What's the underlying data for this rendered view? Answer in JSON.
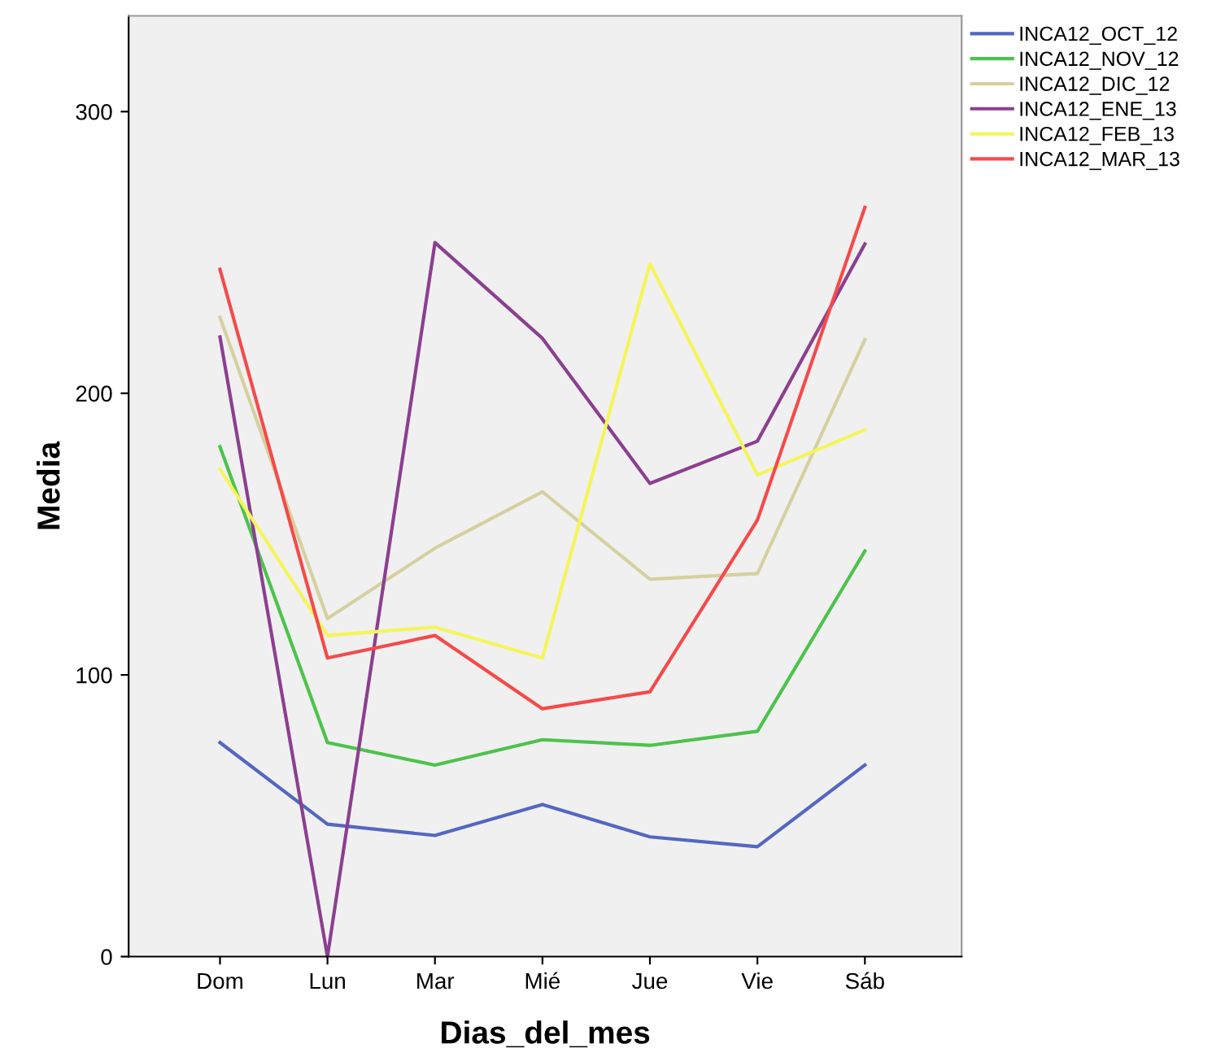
{
  "chart_data": {
    "type": "line",
    "xlabel": "Dias_del_mes",
    "ylabel": "Media",
    "categories": [
      "Dom",
      "Lun",
      "Mar",
      "Mié",
      "Jue",
      "Vie",
      "Sáb"
    ],
    "series": [
      {
        "name": "INCA12_OCT_12",
        "color": "#5467c0",
        "values": [
          76,
          47,
          43,
          54,
          42.5,
          39,
          68
        ]
      },
      {
        "name": "INCA12_NOV_12",
        "color": "#4cc34c",
        "values": [
          181,
          76,
          68,
          77,
          75,
          80,
          144
        ]
      },
      {
        "name": "INCA12_DIC_12",
        "color": "#d6d0a0",
        "values": [
          227,
          120,
          145,
          165,
          134,
          136,
          219
        ]
      },
      {
        "name": "INCA12_ENE_13",
        "color": "#8b3f8f",
        "values": [
          220,
          0,
          253.5,
          219.5,
          168,
          183,
          253
        ]
      },
      {
        "name": "INCA12_FEB_13",
        "color": "#f5f55a",
        "values": [
          173,
          114,
          117,
          106,
          246,
          171,
          187
        ]
      },
      {
        "name": "INCA12_MAR_13",
        "color": "#f54a4a",
        "values": [
          244,
          106,
          114,
          88,
          94,
          155,
          266
        ]
      }
    ],
    "ylim": [
      0,
      334
    ],
    "yticks": [
      0,
      100,
      200,
      300
    ],
    "grid": false,
    "legend": "top right",
    "marker": "none",
    "line_style": "solid"
  }
}
